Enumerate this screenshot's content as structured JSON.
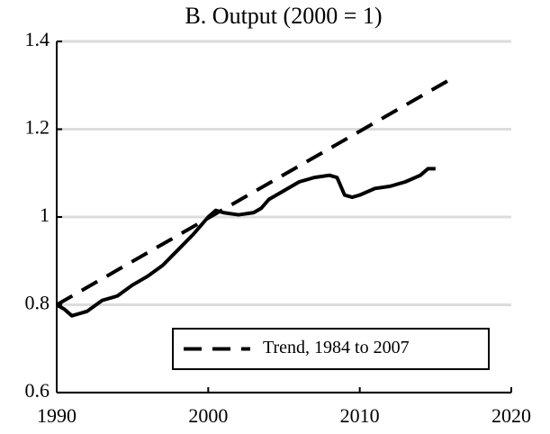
{
  "chart_data": {
    "type": "line",
    "title": "B. Output (2000 = 1)",
    "series": [
      {
        "color": "#000000",
        "dashed": false,
        "x": [
          1990,
          1990.5,
          1991,
          1991.5,
          1992,
          1993,
          1994,
          1995,
          1996,
          1997,
          1998,
          1999,
          2000,
          2000.5,
          2001,
          2002,
          2003,
          2003.5,
          2004,
          2005,
          2006,
          2007,
          2008,
          2008.5,
          2009,
          2009.5,
          2010,
          2011,
          2012,
          2013,
          2014,
          2014.5,
          2015
        ],
        "values": [
          0.8,
          0.79,
          0.775,
          0.78,
          0.785,
          0.81,
          0.82,
          0.845,
          0.865,
          0.89,
          0.925,
          0.96,
          1.0,
          1.015,
          1.01,
          1.005,
          1.01,
          1.02,
          1.04,
          1.06,
          1.08,
          1.09,
          1.095,
          1.09,
          1.05,
          1.045,
          1.05,
          1.065,
          1.07,
          1.08,
          1.095,
          1.11,
          1.11
        ]
      },
      {
        "name": "Trend, 1984 to 2007",
        "color": "#000000",
        "dashed": true,
        "x": [
          1990,
          2015.8
        ],
        "values": [
          0.8,
          1.31
        ]
      }
    ],
    "xlim": [
      1990,
      2020
    ],
    "xticks": [
      1990,
      2000,
      2010,
      2020
    ],
    "ylim": [
      0.6,
      1.4
    ],
    "yticks": [
      0.6,
      0.8,
      1,
      1.2,
      1.4
    ],
    "grid": true,
    "legend": "lower right"
  }
}
